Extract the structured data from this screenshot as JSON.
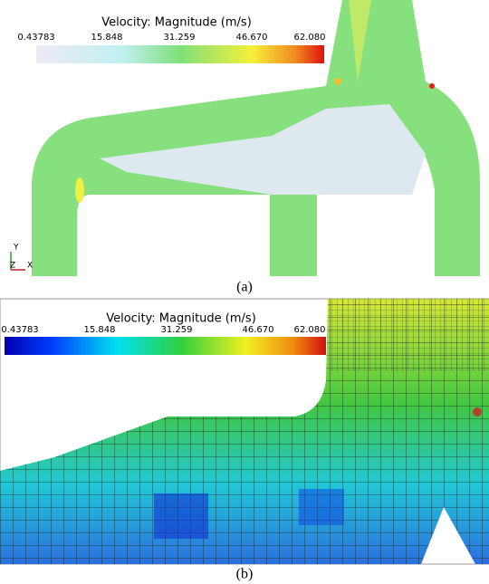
{
  "panels": [
    {
      "colorbar": {
        "title": "Velocity: Magnitude (m/s)",
        "ticks": [
          "0.43783",
          "15.848",
          "31.259",
          "46.670",
          "62.080"
        ]
      },
      "axes": {
        "y": "Y",
        "z": "Z",
        "x": "X"
      },
      "caption": "(a)"
    },
    {
      "colorbar": {
        "title": "Velocity: Magnitude (m/s)",
        "ticks": [
          "0.43783",
          "15.848",
          "31.259",
          "46.670",
          "62.080"
        ]
      },
      "caption": "(b)"
    }
  ]
}
